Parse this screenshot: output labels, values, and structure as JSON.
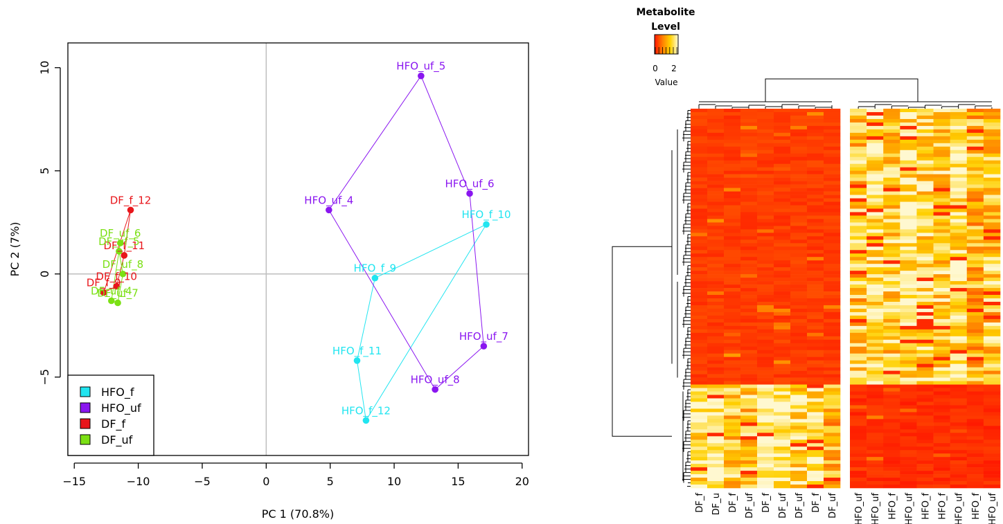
{
  "chart_data": [
    {
      "type": "scatter",
      "xlabel": "PC 1 (70.8%)",
      "ylabel": "PC 2 (7%)",
      "xlim": [
        -15.5,
        20.5
      ],
      "ylim": [
        -8.8,
        11.2
      ],
      "xticks": [
        -15,
        -10,
        -5,
        0,
        5,
        10,
        15,
        20
      ],
      "yticks": [
        -5,
        0,
        5,
        10
      ],
      "reference_lines": {
        "x": 0,
        "y": 0
      },
      "legend_position": "bottom-left",
      "series": [
        {
          "name": "HFO_f",
          "color": "#21e5f0",
          "points": [
            {
              "label": "HFO_f_9",
              "x": 8.5,
              "y": -0.2
            },
            {
              "label": "HFO_f_10",
              "x": 17.2,
              "y": 2.4
            },
            {
              "label": "HFO_f_11",
              "x": 7.1,
              "y": -4.2
            },
            {
              "label": "HFO_f_12",
              "x": 7.8,
              "y": -7.1
            }
          ],
          "hull": [
            "HFO_f_9",
            "HFO_f_10",
            "HFO_f_12",
            "HFO_f_11"
          ]
        },
        {
          "name": "HFO_uf",
          "color": "#8a16f0",
          "points": [
            {
              "label": "HFO_uf_4",
              "x": 4.9,
              "y": 3.1
            },
            {
              "label": "HFO_uf_5",
              "x": 12.1,
              "y": 9.6
            },
            {
              "label": "HFO_uf_6",
              "x": 15.9,
              "y": 3.9
            },
            {
              "label": "HFO_uf_7",
              "x": 17.0,
              "y": -3.5
            },
            {
              "label": "HFO_uf_8",
              "x": 13.2,
              "y": -5.6
            }
          ],
          "hull": [
            "HFO_uf_4",
            "HFO_uf_5",
            "HFO_uf_6",
            "HFO_uf_7",
            "HFO_uf_8"
          ]
        },
        {
          "name": "DF_f",
          "color": "#e8161b",
          "points": [
            {
              "label": "DF_f_9",
              "x": -12.7,
              "y": -0.9
            },
            {
              "label": "DF_f_10",
              "x": -11.7,
              "y": -0.6
            },
            {
              "label": "DF_f_11",
              "x": -11.1,
              "y": 0.9
            },
            {
              "label": "DF_f_12",
              "x": -10.6,
              "y": 3.1
            }
          ],
          "hull": [
            "DF_f_9",
            "DF_f_12",
            "DF_f_11",
            "DF_f_10"
          ]
        },
        {
          "name": "DF_uf",
          "color": "#7be014",
          "points": [
            {
              "label": "DF_uf_4",
              "x": -12.1,
              "y": -1.3
            },
            {
              "label": "DF_uf_5",
              "x": -11.5,
              "y": 1.1
            },
            {
              "label": "DF_uf_6",
              "x": -11.4,
              "y": 1.5
            },
            {
              "label": "DF_uf_7",
              "x": -11.6,
              "y": -1.4
            },
            {
              "label": "DF_uf_8",
              "x": -11.2,
              "y": 0.0
            }
          ],
          "hull": [
            "DF_uf_4",
            "DF_uf_6",
            "DF_uf_5",
            "DF_uf_8",
            "DF_uf_7"
          ]
        }
      ]
    },
    {
      "type": "heatmap",
      "legend_title_line1": "Metabolite",
      "legend_title_line2": "Level",
      "legend_tick_labels": [
        "0",
        "2"
      ],
      "legend_axis_label": "Value",
      "color_scale": [
        "#ff1a00",
        "#ff8000",
        "#ffd000",
        "#fff8d0"
      ],
      "column_groups": [
        {
          "columns": [
            "DF_f",
            "DF_u",
            "DF_f",
            "DF_uf",
            "DF_f",
            "DF_uf",
            "DF_uf",
            "DF_f",
            "DF_uf"
          ],
          "upper_block_level": 0.05,
          "lower_block_level": 0.75
        },
        {
          "columns": [
            "HFO_uf",
            "HFO_uf",
            "HFO_f",
            "HFO_uf",
            "HFO_f",
            "HFO_f",
            "HFO_uf",
            "HFO_f",
            "HFO_uf"
          ],
          "upper_block_level": 0.7,
          "lower_block_level": 0.0
        }
      ],
      "row_split_fraction": 0.73,
      "row_dendrogram": true,
      "column_dendrogram": true
    }
  ]
}
